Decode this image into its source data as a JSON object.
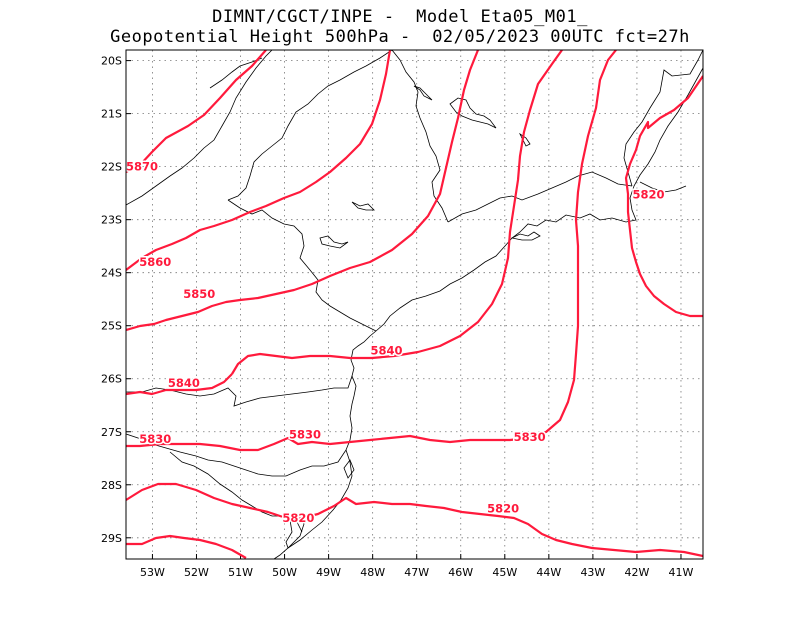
{
  "title": {
    "line1": "DIMNT/CGCT/INPE -  Model Eta05_M01_",
    "line2": "Geopotential Height 500hPa -  02/05/2023 00UTC fct=27h"
  },
  "colors": {
    "contour": "#ff1a3c",
    "coast": "#000000",
    "grid": "#777777"
  },
  "map": {
    "lon_range": [
      -53.6,
      -40.5
    ],
    "lat_range": [
      -29.4,
      -19.8
    ],
    "lat_ticks": [
      {
        "value": -20,
        "label": "20S"
      },
      {
        "value": -21,
        "label": "21S"
      },
      {
        "value": -22,
        "label": "22S"
      },
      {
        "value": -23,
        "label": "23S"
      },
      {
        "value": -24,
        "label": "24S"
      },
      {
        "value": -25,
        "label": "25S"
      },
      {
        "value": -26,
        "label": "26S"
      },
      {
        "value": -27,
        "label": "27S"
      },
      {
        "value": -28,
        "label": "28S"
      },
      {
        "value": -29,
        "label": "29S"
      }
    ],
    "lon_ticks": [
      {
        "value": -53,
        "label": "53W"
      },
      {
        "value": -52,
        "label": "52W"
      },
      {
        "value": -51,
        "label": "51W"
      },
      {
        "value": -50,
        "label": "50W"
      },
      {
        "value": -49,
        "label": "49W"
      },
      {
        "value": -48,
        "label": "48W"
      },
      {
        "value": -47,
        "label": "47W"
      },
      {
        "value": -46,
        "label": "46W"
      },
      {
        "value": -45,
        "label": "45W"
      },
      {
        "value": -44,
        "label": "44W"
      },
      {
        "value": -43,
        "label": "43W"
      },
      {
        "value": -42,
        "label": "42W"
      },
      {
        "value": -41,
        "label": "41W"
      }
    ],
    "contour_labels": [
      {
        "text": "5870",
        "lon": -53.6,
        "lat": -22.07
      },
      {
        "text": "5860",
        "lon": -53.3,
        "lat": -23.87
      },
      {
        "text": "5850",
        "lon": -52.3,
        "lat": -24.48
      },
      {
        "text": "5840",
        "lon": -48.05,
        "lat": -25.54
      },
      {
        "text": "5840",
        "lon": -52.65,
        "lat": -26.16
      },
      {
        "text": "5830",
        "lon": -53.3,
        "lat": -27.21
      },
      {
        "text": "5830",
        "lon": -49.9,
        "lat": -27.13
      },
      {
        "text": "5830",
        "lon": -44.8,
        "lat": -27.17
      },
      {
        "text": "5820",
        "lon": -42.1,
        "lat": -22.6
      },
      {
        "text": "5820",
        "lon": -50.05,
        "lat": -28.7
      },
      {
        "text": "5820",
        "lon": -45.4,
        "lat": -28.52
      }
    ]
  }
}
